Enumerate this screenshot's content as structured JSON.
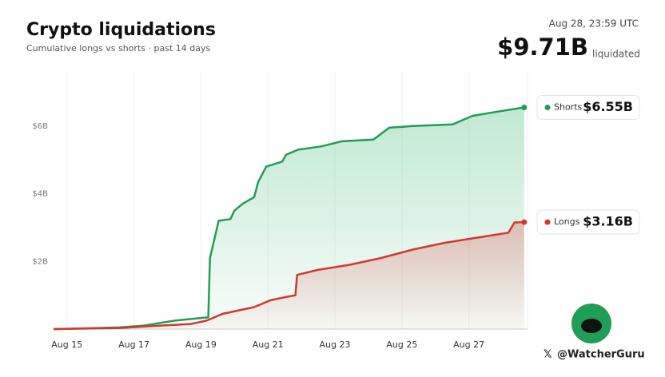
{
  "chart_data": {
    "type": "line",
    "title": "Crypto liquidations",
    "subtitle": "Cumulative longs vs shorts · past 14 days",
    "timestamp": "Aug 28, 23:59 UTC",
    "total_label": "$9.71B",
    "total_caption": "liquidated",
    "watermark": "@WatcherGuru",
    "xlim": [
      14.6,
      28.75
    ],
    "ylim": [
      0,
      7.6
    ],
    "xticks": [
      {
        "value": 15,
        "label": "Aug 15"
      },
      {
        "value": 17,
        "label": "Aug 17"
      },
      {
        "value": 19,
        "label": "Aug 19"
      },
      {
        "value": 21,
        "label": "Aug 21"
      },
      {
        "value": 23,
        "label": "Aug 23"
      },
      {
        "value": 25,
        "label": "Aug 25"
      },
      {
        "value": 27,
        "label": "Aug 27"
      }
    ],
    "yticks": [
      {
        "value": 2,
        "label": "$2B"
      },
      {
        "value": 4,
        "label": "$4B"
      },
      {
        "value": 6,
        "label": "$6B"
      }
    ],
    "grid": true,
    "series": [
      {
        "name": "Shorts",
        "color": "#1f9e55",
        "end_label": "$6.55B",
        "x": [
          14.6,
          16.56,
          17.27,
          18.22,
          19.22,
          19.27,
          19.53,
          19.88,
          20.0,
          20.24,
          20.59,
          20.71,
          20.95,
          21.43,
          21.54,
          21.9,
          22.6,
          23.2,
          24.15,
          24.62,
          25.33,
          26.52,
          27.1,
          27.7,
          28.65
        ],
        "values": [
          0,
          0.05,
          0.1,
          0.25,
          0.35,
          2.1,
          3.2,
          3.25,
          3.5,
          3.7,
          3.9,
          4.35,
          4.8,
          4.95,
          5.15,
          5.3,
          5.4,
          5.55,
          5.6,
          5.95,
          6.0,
          6.05,
          6.3,
          6.4,
          6.55
        ]
      },
      {
        "name": "Longs",
        "color": "#d2382f",
        "end_label": "$3.16B",
        "x": [
          14.6,
          16.56,
          17.75,
          18.7,
          19.17,
          19.65,
          20.59,
          21.07,
          21.54,
          21.82,
          21.87,
          22.49,
          23.44,
          24.38,
          25.33,
          26.28,
          27.23,
          28.18,
          28.36,
          28.65
        ],
        "values": [
          0,
          0.03,
          0.1,
          0.15,
          0.25,
          0.45,
          0.65,
          0.85,
          0.95,
          1.0,
          1.6,
          1.75,
          1.9,
          2.1,
          2.35,
          2.55,
          2.7,
          2.85,
          3.15,
          3.16
        ]
      }
    ]
  }
}
